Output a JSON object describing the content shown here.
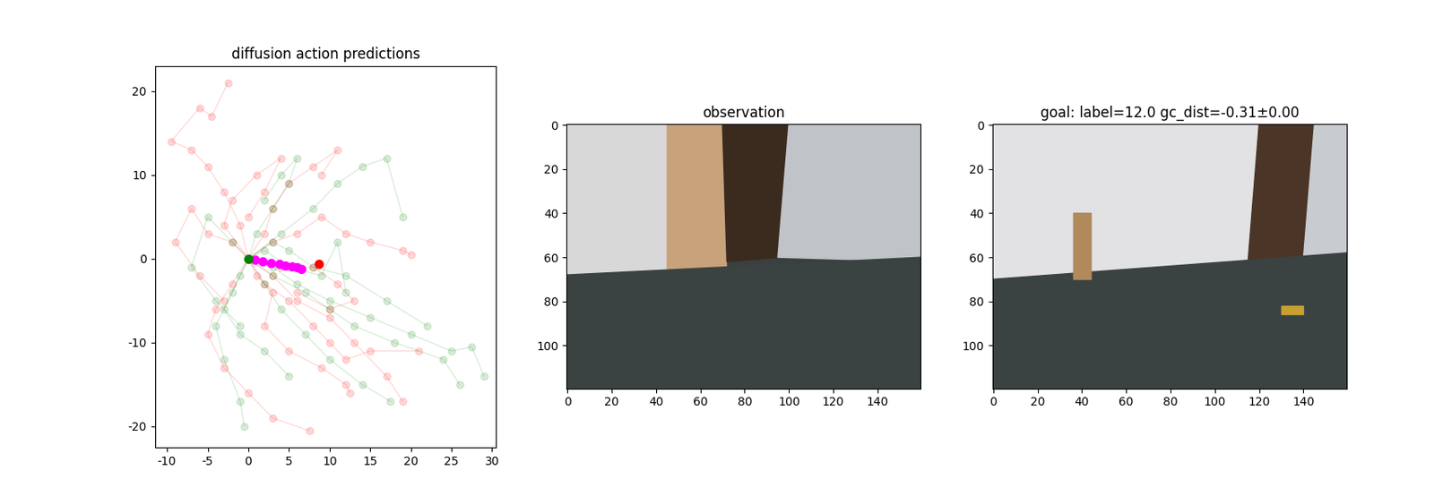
{
  "chart_data": [
    {
      "type": "line",
      "title": "diffusion action predictions",
      "xlim": [
        -11.5,
        30.5
      ],
      "ylim": [
        -22.5,
        23
      ],
      "xticks": [
        -10,
        -5,
        0,
        5,
        10,
        15,
        20,
        25,
        30
      ],
      "yticks": [
        -20,
        -10,
        0,
        10,
        20
      ],
      "series": [
        {
          "type": "line",
          "color": "red",
          "marker": "o",
          "line_style": "solid",
          "x": [
            0,
            -1,
            -3,
            -5,
            -7,
            -9.5,
            -6,
            -4.5,
            -2.5
          ],
          "y": [
            0,
            4,
            8,
            11,
            13,
            14,
            18,
            17,
            21
          ]
        },
        {
          "type": "line",
          "color": "red",
          "marker": "o",
          "line_style": "solid",
          "x": [
            0,
            3,
            6,
            9,
            12,
            15,
            19,
            20
          ],
          "y": [
            0,
            2,
            3,
            5,
            3,
            2,
            1,
            0.5
          ]
        },
        {
          "type": "line",
          "color": "red",
          "marker": "o",
          "line_style": "solid",
          "x": [
            0,
            2,
            5,
            8,
            10,
            12,
            15,
            21
          ],
          "y": [
            0,
            -3,
            -5,
            -8,
            -10,
            -12,
            -11,
            -11
          ]
        },
        {
          "type": "line",
          "color": "red",
          "marker": "o",
          "line_style": "solid",
          "x": [
            0,
            -2,
            -4,
            -5,
            -3,
            0,
            3,
            7.5
          ],
          "y": [
            0,
            -3,
            -6,
            -9,
            -13,
            -16,
            -19,
            -20.5
          ]
        },
        {
          "type": "line",
          "color": "red",
          "marker": "o",
          "line_style": "solid",
          "x": [
            0,
            3,
            6,
            10,
            13,
            17,
            19
          ],
          "y": [
            0,
            -2,
            -5,
            -7,
            -10,
            -14,
            -17
          ]
        },
        {
          "type": "line",
          "color": "red",
          "marker": "o",
          "line_style": "solid",
          "x": [
            0,
            -2,
            -5,
            -7,
            -9,
            -6,
            -3
          ],
          "y": [
            0,
            2,
            3,
            6,
            2,
            -2,
            -5
          ]
        },
        {
          "type": "line",
          "color": "red",
          "marker": "o",
          "line_style": "solid",
          "x": [
            0,
            2,
            3,
            5,
            8,
            11,
            9
          ],
          "y": [
            0,
            3,
            6,
            9,
            11,
            13,
            10
          ]
        },
        {
          "type": "line",
          "color": "red",
          "marker": "o",
          "line_style": "solid",
          "x": [
            0,
            1,
            3,
            2,
            5,
            9,
            12,
            12.5
          ],
          "y": [
            0,
            -2,
            -4,
            -8,
            -11,
            -13,
            -15,
            -16
          ]
        },
        {
          "type": "line",
          "color": "red",
          "marker": "o",
          "line_style": "solid",
          "x": [
            0,
            4,
            8,
            11,
            13,
            10,
            6
          ],
          "y": [
            0,
            -1,
            -1,
            -3,
            -5,
            -6,
            -4
          ]
        },
        {
          "type": "line",
          "color": "red",
          "marker": "o",
          "line_style": "solid",
          "x": [
            0,
            -3,
            -2,
            1,
            4,
            2,
            0
          ],
          "y": [
            0,
            4,
            7,
            10,
            12,
            8,
            5
          ]
        },
        {
          "type": "line",
          "color": "green",
          "marker": "o",
          "line_style": "solid",
          "x": [
            0,
            3,
            6,
            10,
            15,
            20,
            25,
            27.5,
            29
          ],
          "y": [
            0,
            -1,
            -3,
            -5,
            -7,
            -9,
            -11,
            -10.5,
            -14
          ]
        },
        {
          "type": "line",
          "color": "green",
          "marker": "o",
          "line_style": "solid",
          "x": [
            0,
            2,
            4,
            7,
            10,
            14,
            17.5
          ],
          "y": [
            0,
            -3,
            -6,
            -9,
            -12,
            -15,
            -17
          ]
        },
        {
          "type": "line",
          "color": "green",
          "marker": "o",
          "line_style": "solid",
          "x": [
            0,
            -2,
            -4,
            -3,
            -1,
            -0.5
          ],
          "y": [
            0,
            -4,
            -8,
            -12,
            -17,
            -20
          ]
        },
        {
          "type": "line",
          "color": "green",
          "marker": "o",
          "line_style": "solid",
          "x": [
            0,
            4,
            8,
            11,
            14,
            17,
            19
          ],
          "y": [
            0,
            3,
            6,
            9,
            11,
            12,
            5
          ]
        },
        {
          "type": "line",
          "color": "green",
          "marker": "o",
          "line_style": "solid",
          "x": [
            0,
            -2,
            -5,
            -7,
            -4,
            -1
          ],
          "y": [
            0,
            2,
            5,
            -1,
            -5,
            -8
          ]
        },
        {
          "type": "line",
          "color": "green",
          "marker": "o",
          "line_style": "solid",
          "x": [
            0,
            3,
            5,
            8,
            12,
            17,
            22
          ],
          "y": [
            0,
            2,
            1,
            -1,
            -2,
            -5,
            -8
          ]
        },
        {
          "type": "line",
          "color": "green",
          "marker": "o",
          "line_style": "solid",
          "x": [
            0,
            1,
            3,
            5,
            6,
            4,
            2
          ],
          "y": [
            0,
            3,
            6,
            9,
            12,
            10,
            7
          ]
        },
        {
          "type": "line",
          "color": "green",
          "marker": "o",
          "line_style": "solid",
          "x": [
            0,
            3,
            7,
            10,
            13,
            18,
            24,
            26
          ],
          "y": [
            0,
            -2,
            -4,
            -6,
            -8,
            -10,
            -12,
            -15
          ]
        },
        {
          "type": "line",
          "color": "green",
          "marker": "o",
          "line_style": "solid",
          "x": [
            0,
            -1,
            -3,
            -1,
            2,
            5
          ],
          "y": [
            0,
            -2,
            -6,
            -9,
            -11,
            -14
          ]
        },
        {
          "type": "line",
          "color": "green",
          "marker": "o",
          "line_style": "solid",
          "x": [
            0,
            2,
            5,
            9,
            11,
            12
          ],
          "y": [
            0,
            1,
            -1,
            -2,
            2,
            -4
          ]
        },
        {
          "type": "scatter",
          "color": "magenta",
          "marker": "o",
          "x": [
            0.8,
            1.8,
            2.8,
            3.8,
            4.6,
            5.4,
            6.0,
            6.5
          ],
          "y": [
            -0.1,
            -0.3,
            -0.5,
            -0.6,
            -0.8,
            -0.9,
            -1.0,
            -1.2
          ]
        },
        {
          "type": "scatter",
          "color": "green",
          "marker": "o",
          "x": [
            0
          ],
          "y": [
            0
          ]
        },
        {
          "type": "scatter",
          "color": "red",
          "marker": "o",
          "x": [
            8.7
          ],
          "y": [
            -0.6
          ]
        }
      ]
    },
    {
      "type": "image",
      "title": "observation",
      "xlim": [
        -0.5,
        159.5
      ],
      "ylim": [
        119.5,
        -0.5
      ],
      "xticks": [
        0,
        20,
        40,
        60,
        80,
        100,
        120,
        140
      ],
      "yticks": [
        0,
        20,
        40,
        60,
        80,
        100
      ]
    },
    {
      "type": "image",
      "title": "goal: label=12.0 gc_dist=-0.31±0.00",
      "xlim": [
        -0.5,
        159.5
      ],
      "ylim": [
        119.5,
        -0.5
      ],
      "xticks": [
        0,
        20,
        40,
        60,
        80,
        100,
        120,
        140
      ],
      "yticks": [
        0,
        20,
        40,
        60,
        80,
        100
      ]
    }
  ]
}
